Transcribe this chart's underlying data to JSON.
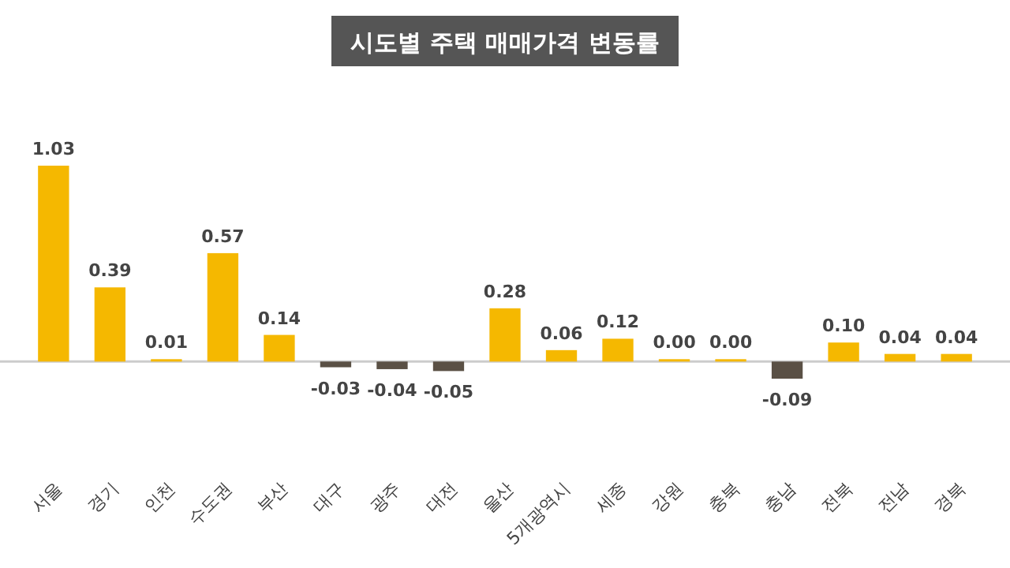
{
  "chart_data": {
    "type": "bar",
    "title": "시도별 주택 매매가격 변동률",
    "categories": [
      "서울",
      "경기",
      "인천",
      "수도권",
      "부산",
      "대구",
      "광주",
      "대전",
      "울산",
      "5개광역시",
      "세종",
      "강원",
      "충북",
      "충남",
      "전북",
      "전남",
      "경북"
    ],
    "values": [
      1.03,
      0.39,
      0.01,
      0.57,
      0.14,
      -0.03,
      -0.04,
      -0.05,
      0.28,
      0.06,
      0.12,
      0.0,
      0.0,
      -0.09,
      0.1,
      0.04,
      0.04
    ],
    "colors": [
      "#f5b800",
      "#f5b800",
      "#f5b800",
      "#f5b800",
      "#f5b800",
      "#5a5045",
      "#5a5045",
      "#5a5045",
      "#f5b800",
      "#f5b800",
      "#f5b800",
      "#f5b800",
      "#f5b800",
      "#5a5045",
      "#f5b800",
      "#f5b800",
      "#f5b800"
    ],
    "value_labels": [
      "1.03",
      "0.39",
      "0.01",
      "0.57",
      "0.14",
      "-0.03",
      "-0.04",
      "-0.05",
      "0.28",
      "0.06",
      "0.12",
      "0.00",
      "0.00",
      "-0.09",
      "0.10",
      "0.04",
      "0.04"
    ]
  }
}
